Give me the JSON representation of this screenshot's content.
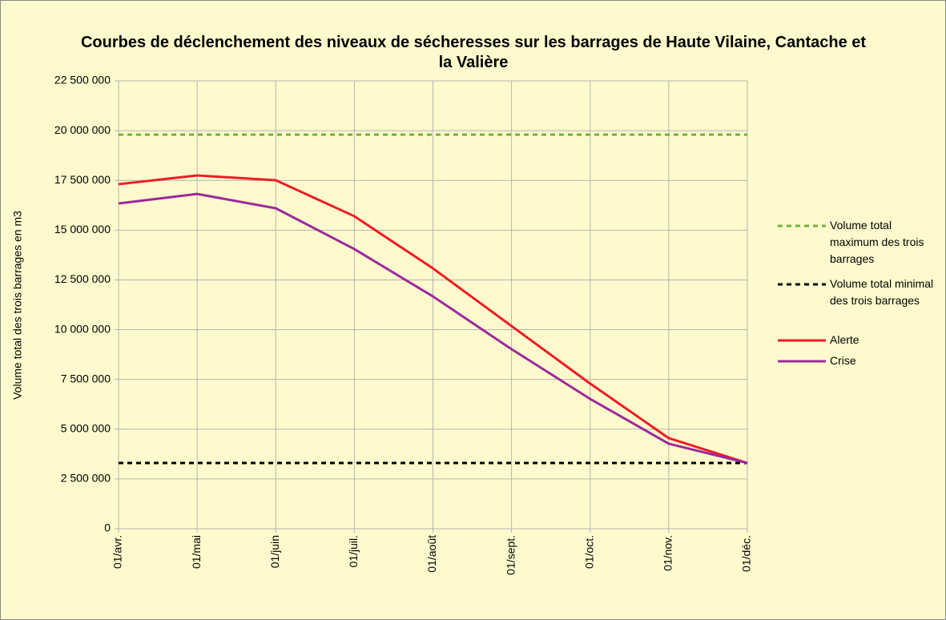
{
  "chart_data": {
    "type": "line",
    "title": "Courbes de déclenchement des niveaux de sécheresses sur les barrages de Haute Vilaine, Cantache et la Valière",
    "y_label": "Volume total des trois barrages en m3",
    "categories": [
      "01/avr.",
      "01/mai",
      "01/juin",
      "01/juil.",
      "01/août",
      "01/sept.",
      "01/oct.",
      "01/nov.",
      "01/déc."
    ],
    "ylim": [
      0,
      22500000
    ],
    "yticks": [
      0,
      {
        "value": 2500000,
        "label": "2 500 000"
      },
      {
        "value": 5000000,
        "label": "5 000 000"
      },
      {
        "value": 7500000,
        "label": "7 500 000"
      },
      {
        "value": 10000000,
        "label": "10 000 000"
      },
      {
        "value": 12500000,
        "label": "12 500 000"
      },
      {
        "value": 15000000,
        "label": "15 000 000"
      },
      {
        "value": 17500000,
        "label": "17 500 000"
      },
      {
        "value": 20000000,
        "label": "20 000 000"
      },
      {
        "value": 22500000,
        "label": "22 500 000"
      }
    ],
    "grid": true,
    "legend": "right",
    "series": [
      {
        "name": "Volume total maximum des trois barrages",
        "color": "#6db33f",
        "style": "dashed",
        "values": [
          19800000,
          19800000,
          19800000,
          19800000,
          19800000,
          19800000,
          19800000,
          19800000,
          19800000
        ]
      },
      {
        "name": "Volume total minimal des trois barrages",
        "color": "#000000",
        "style": "dashed",
        "values": [
          3300000,
          3300000,
          3300000,
          3300000,
          3300000,
          3300000,
          3300000,
          3300000,
          3300000
        ]
      },
      {
        "name": "Alerte",
        "color": "#ee1c25",
        "style": "solid",
        "values": [
          17310000,
          17750000,
          17510000,
          15700000,
          13080000,
          10180000,
          7290000,
          4550000,
          3300000
        ]
      },
      {
        "name": "Crise",
        "color": "#9b2a9c",
        "style": "solid",
        "values": [
          16340000,
          16820000,
          16100000,
          14050000,
          11670000,
          9020000,
          6520000,
          4270000,
          3300000
        ]
      }
    ]
  }
}
